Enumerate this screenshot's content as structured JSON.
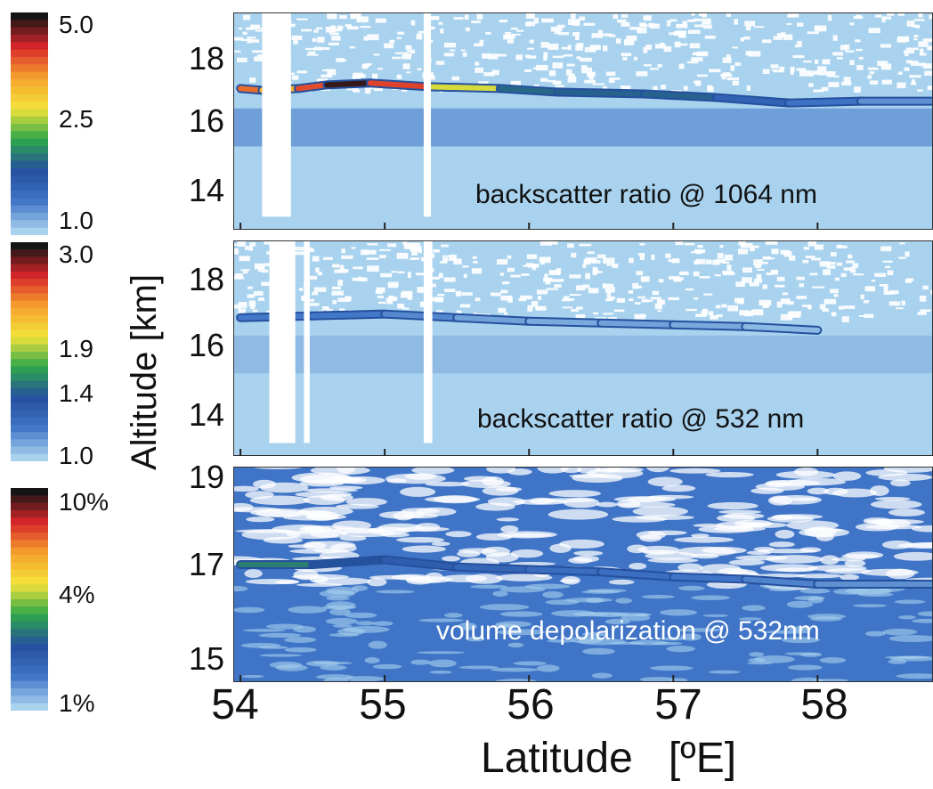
{
  "chart_data": [
    {
      "type": "heatmap",
      "label": "backscatter ratio @ 1064 nm",
      "colorbar_ticks": [
        "5.0",
        "2.5",
        "1.0"
      ],
      "colorbar_range": [
        1.0,
        5.0
      ],
      "y_ticks": [
        "18",
        "16",
        "14"
      ],
      "ylim": [
        13,
        19
      ],
      "layer_profile": [
        {
          "lat": 54.0,
          "alt": 16.9,
          "value": 4.2
        },
        {
          "lat": 54.15,
          "alt": 16.85,
          "value": 4.0
        },
        {
          "lat": 54.4,
          "alt": 16.9,
          "value": 3.5
        },
        {
          "lat": 54.6,
          "alt": 17.0,
          "value": 5.0
        },
        {
          "lat": 54.9,
          "alt": 17.05,
          "value": 4.8
        },
        {
          "lat": 55.3,
          "alt": 16.95,
          "value": 3.8
        },
        {
          "lat": 55.8,
          "alt": 16.9,
          "value": 2.6
        },
        {
          "lat": 56.2,
          "alt": 16.8,
          "value": 2.0
        },
        {
          "lat": 56.8,
          "alt": 16.75,
          "value": 2.5
        },
        {
          "lat": 57.3,
          "alt": 16.65,
          "value": 2.0
        },
        {
          "lat": 57.8,
          "alt": 16.5,
          "value": 1.7
        },
        {
          "lat": 58.3,
          "alt": 16.55,
          "value": 1.5
        },
        {
          "lat": 58.8,
          "alt": 16.55,
          "value": 1.3
        }
      ],
      "gaps_lat": [
        [
          54.15,
          54.35
        ],
        [
          55.27,
          55.32
        ]
      ]
    },
    {
      "type": "heatmap",
      "label": "backscatter ratio @ 532 nm",
      "colorbar_ticks": [
        "3.0",
        "1.9",
        "1.4",
        "1.0"
      ],
      "colorbar_range": [
        1.0,
        3.0
      ],
      "y_ticks": [
        "18",
        "16",
        "14"
      ],
      "ylim": [
        13,
        19
      ],
      "layer_profile": [
        {
          "lat": 54.0,
          "alt": 16.85,
          "value": 1.25
        },
        {
          "lat": 54.5,
          "alt": 16.9,
          "value": 1.3
        },
        {
          "lat": 55.0,
          "alt": 16.95,
          "value": 1.25
        },
        {
          "lat": 55.5,
          "alt": 16.85,
          "value": 1.2
        },
        {
          "lat": 56.0,
          "alt": 16.75,
          "value": 1.1
        },
        {
          "lat": 56.5,
          "alt": 16.7,
          "value": 1.15
        },
        {
          "lat": 57.0,
          "alt": 16.65,
          "value": 1.15
        },
        {
          "lat": 57.5,
          "alt": 16.6,
          "value": 1.1
        },
        {
          "lat": 58.0,
          "alt": 16.5,
          "value": 1.05
        }
      ],
      "gaps_lat": [
        [
          54.2,
          54.38
        ],
        [
          54.44,
          54.48
        ],
        [
          55.27,
          55.33
        ]
      ]
    },
    {
      "type": "heatmap",
      "label": "volume depolarization @ 532nm",
      "colorbar_ticks": [
        "10%",
        "4%",
        "1%"
      ],
      "colorbar_range": [
        1,
        10
      ],
      "y_ticks": [
        "19",
        "17",
        "15"
      ],
      "ylim": [
        14.6,
        19
      ],
      "layer_profile": [
        {
          "lat": 54.0,
          "alt": 17.0,
          "value": 4.5
        },
        {
          "lat": 54.5,
          "alt": 17.0,
          "value": 4.0
        },
        {
          "lat": 55.0,
          "alt": 17.1,
          "value": 3.2
        },
        {
          "lat": 55.5,
          "alt": 16.95,
          "value": 3.0
        },
        {
          "lat": 56.0,
          "alt": 16.9,
          "value": 2.6
        },
        {
          "lat": 56.5,
          "alt": 16.85,
          "value": 2.5
        },
        {
          "lat": 57.0,
          "alt": 16.75,
          "value": 2.4
        },
        {
          "lat": 57.5,
          "alt": 16.7,
          "value": 2.2
        },
        {
          "lat": 58.0,
          "alt": 16.6,
          "value": 2.0
        },
        {
          "lat": 58.8,
          "alt": 16.6,
          "value": 1.8
        }
      ],
      "gaps_lat": []
    }
  ],
  "axes": {
    "ylabel": "Altitude [km]",
    "xlabel": "Latitude   [ºE]",
    "xlim": [
      53.95,
      58.8
    ],
    "x_ticks": [
      "54",
      "55",
      "56",
      "57",
      "58"
    ]
  },
  "colors": {
    "white": "#ffffff",
    "background_light": "#a8d2ee",
    "blue": "#3f74c6",
    "dark_blue": "#25509e",
    "green": "#2ea84a",
    "yellow": "#f4e33a",
    "orange": "#f5a12d",
    "red": "#d8262b",
    "black": "#151515"
  }
}
